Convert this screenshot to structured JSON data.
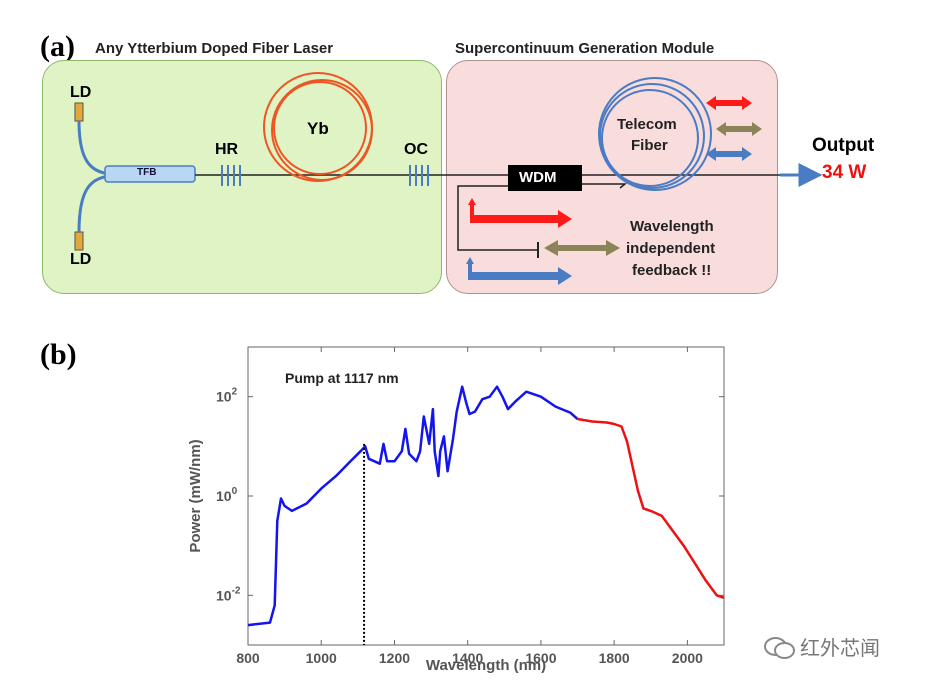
{
  "panel_a": {
    "label": "(a)",
    "laser_title": "Any Ytterbium Doped Fiber Laser",
    "module_title": "Supercontinuum Generation Module",
    "ld_top": "LD",
    "ld_bottom": "LD",
    "tfb": "TFB",
    "hr": "HR",
    "yb": "Yb",
    "oc": "OC",
    "wdm": "WDM",
    "telecom_line1": "Telecom",
    "telecom_line2": "Fiber",
    "output_label": "Output",
    "output_power": "34 W",
    "feedback_line1": "Wavelength",
    "feedback_line2": "independent",
    "feedback_line3": "feedback !!",
    "colors": {
      "laser_bg": "#dff3c4",
      "module_bg": "#f9dcdc",
      "red_arrow": "#ff1a1a",
      "olive_arrow": "#8c8459",
      "blue_arrow": "#4a7cc4",
      "output_red": "#ee1111"
    }
  },
  "panel_b": {
    "label": "(b)",
    "watermark": "红外芯闻",
    "icon": "wechat-icon"
  },
  "chart_data": {
    "type": "line",
    "title": "",
    "annotation": "Pump at 1117 nm",
    "xlabel": "Wavelength (nm)",
    "ylabel": "Power (mW/nm)",
    "xlim": [
      800,
      2100
    ],
    "ylim_log10": [
      -3,
      3
    ],
    "yscale": "log",
    "xticks": [
      "800",
      "1000",
      "1200",
      "1400",
      "1600",
      "1800",
      "2000"
    ],
    "yticks": [
      {
        "base": "10",
        "exp": "2",
        "log": 2
      },
      {
        "base": "10",
        "exp": "0",
        "log": 0
      },
      {
        "base": "10",
        "exp": "-2",
        "log": -2
      }
    ],
    "pump_nm": 1117,
    "series": [
      {
        "color": "#1414ee",
        "x": [
          800,
          860,
          873,
          880,
          890,
          900,
          920,
          960,
          1000,
          1040,
          1080,
          1110,
          1120,
          1130,
          1160,
          1170,
          1180,
          1200,
          1220,
          1230,
          1240,
          1260,
          1270,
          1280,
          1295,
          1305,
          1310,
          1320,
          1325,
          1335,
          1345,
          1360,
          1370,
          1385,
          1395,
          1405,
          1420,
          1440,
          1460,
          1480,
          1495,
          1510,
          1530,
          1560,
          1600,
          1640,
          1680,
          1700
        ],
        "log10_y": [
          -2.6,
          -2.55,
          -2.2,
          -0.5,
          -0.05,
          -0.2,
          -0.3,
          -0.15,
          0.15,
          0.4,
          0.7,
          0.92,
          1.0,
          0.75,
          0.65,
          1.05,
          0.7,
          0.7,
          0.9,
          1.35,
          0.85,
          0.7,
          0.9,
          1.6,
          1.05,
          1.75,
          0.9,
          0.4,
          0.9,
          1.2,
          0.5,
          1.15,
          1.7,
          2.2,
          1.9,
          1.65,
          1.7,
          1.95,
          2.0,
          2.2,
          2.0,
          1.75,
          1.9,
          2.1,
          2.0,
          1.8,
          1.68,
          1.55
        ]
      },
      {
        "color": "#ee1111",
        "x": [
          1700,
          1740,
          1780,
          1800,
          1820,
          1835,
          1850,
          1865,
          1880,
          1900,
          1930,
          1960,
          1990,
          2020,
          2050,
          2080,
          2100
        ],
        "log10_y": [
          1.55,
          1.5,
          1.48,
          1.45,
          1.4,
          1.1,
          0.6,
          0.1,
          -0.25,
          -0.3,
          -0.4,
          -0.7,
          -1.0,
          -1.35,
          -1.7,
          -2.0,
          -2.05
        ]
      }
    ]
  }
}
